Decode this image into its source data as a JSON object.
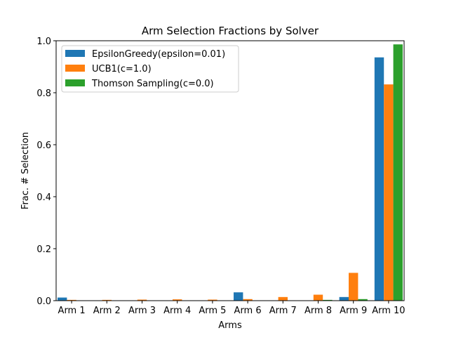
{
  "chart_data": {
    "type": "bar",
    "title": "Arm Selection Fractions by Solver",
    "xlabel": "Arms",
    "ylabel": "Frac. # Selection",
    "ylim": [
      0,
      1.0
    ],
    "yticks": [
      "0.0",
      "0.2",
      "0.4",
      "0.6",
      "0.8",
      "1.0"
    ],
    "ytick_values": [
      0,
      0.2,
      0.4,
      0.6,
      0.8,
      1.0
    ],
    "categories": [
      "Arm 1",
      "Arm 2",
      "Arm 3",
      "Arm 4",
      "Arm 5",
      "Arm 6",
      "Arm 7",
      "Arm 8",
      "Arm 9",
      "Arm 10"
    ],
    "series": [
      {
        "name": "EpsilonGreedy(epsilon=0.01)",
        "color": "#1f77b4",
        "values": [
          0.012,
          0.001,
          0.001,
          0.001,
          0.001,
          0.032,
          0.001,
          0.001,
          0.014,
          0.936
        ]
      },
      {
        "name": "UCB1(c=1.0)",
        "color": "#ff7f0e",
        "values": [
          0.003,
          0.003,
          0.004,
          0.005,
          0.004,
          0.006,
          0.014,
          0.023,
          0.107,
          0.832
        ]
      },
      {
        "name": "Thomson Sampling(c=0.0)",
        "color": "#2ca02c",
        "values": [
          0.0,
          0.0,
          0.0,
          0.0,
          0.0,
          0.0,
          0.0,
          0.003,
          0.006,
          0.986
        ]
      }
    ],
    "legend": "top-left",
    "grid": false
  }
}
